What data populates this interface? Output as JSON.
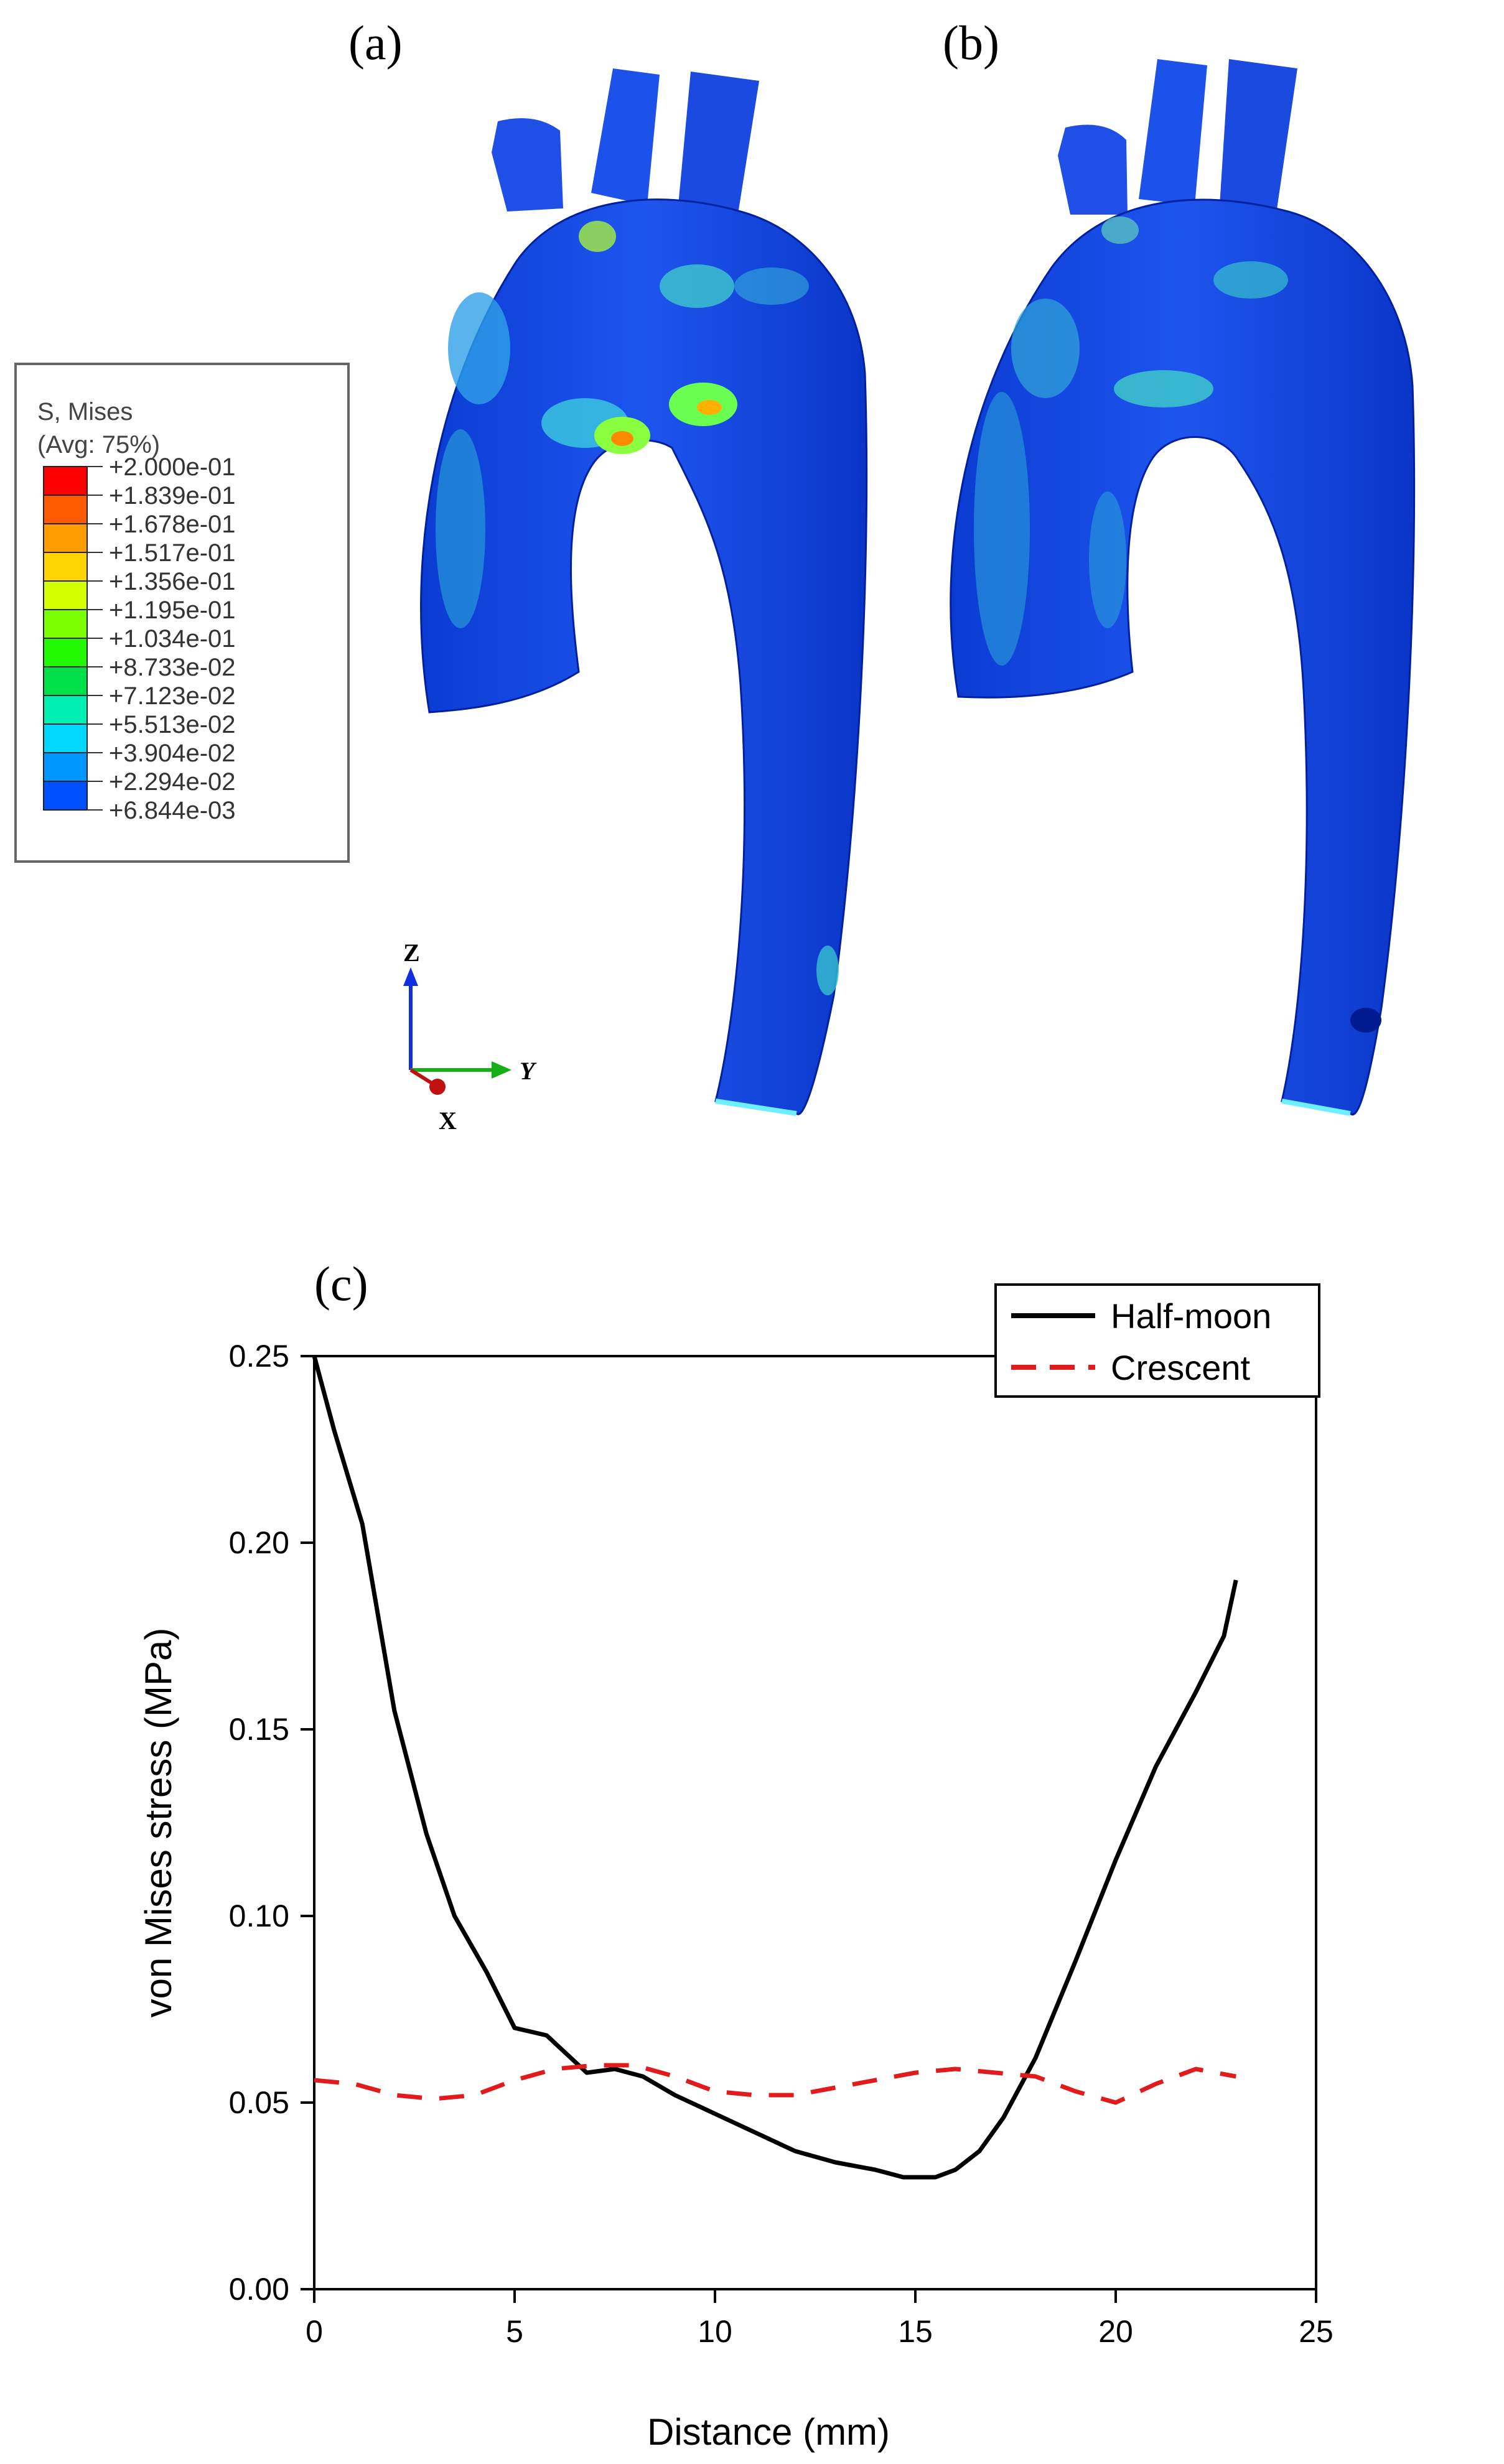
{
  "panels": {
    "a_label": "(a)",
    "b_label": "(b)",
    "c_label": "(c)"
  },
  "legend": {
    "title": "S, Mises",
    "subtitle": "(Avg: 75%)",
    "levels": [
      {
        "label": "+2.000e-01",
        "color": "#ff0000"
      },
      {
        "label": "+1.839e-01",
        "color": "#ff5a00"
      },
      {
        "label": "+1.678e-01",
        "color": "#ff9c00"
      },
      {
        "label": "+1.517e-01",
        "color": "#ffd400"
      },
      {
        "label": "+1.356e-01",
        "color": "#d4ff00"
      },
      {
        "label": "+1.195e-01",
        "color": "#7aff00"
      },
      {
        "label": "+1.034e-01",
        "color": "#22f800"
      },
      {
        "label": "+8.733e-02",
        "color": "#00e04a"
      },
      {
        "label": "+7.123e-02",
        "color": "#00f0b4"
      },
      {
        "label": "+5.513e-02",
        "color": "#00d8ff"
      },
      {
        "label": "+3.904e-02",
        "color": "#0096ff"
      },
      {
        "label": "+2.294e-02",
        "color": "#0050ff"
      },
      {
        "label": "+6.844e-03",
        "color": "#0010f0"
      }
    ]
  },
  "triad": {
    "z": "Z",
    "y": "Y",
    "x": "X"
  },
  "chart_data": {
    "type": "line",
    "title": "",
    "xlabel": "Distance (mm)",
    "ylabel": "von Mises stress (MPa)",
    "xlim": [
      0,
      25
    ],
    "ylim": [
      0,
      0.25
    ],
    "xticks": [
      "0",
      "5",
      "10",
      "15",
      "20",
      "25"
    ],
    "yticks": [
      "0.00",
      "0.05",
      "0.10",
      "0.15",
      "0.20",
      "0.25"
    ],
    "legend_position": "top-right",
    "series": [
      {
        "name": "Half-moon",
        "color": "#000000",
        "style": "solid",
        "x": [
          0,
          0.5,
          1.2,
          2,
          2.8,
          3.5,
          4.3,
          5,
          5.8,
          6.3,
          6.8,
          7.5,
          8.2,
          9,
          10,
          11,
          12,
          13,
          14,
          14.7,
          15.5,
          16,
          16.6,
          17.2,
          18,
          19,
          20,
          21,
          22,
          22.7,
          23
        ],
        "y": [
          0.25,
          0.23,
          0.205,
          0.155,
          0.122,
          0.1,
          0.085,
          0.07,
          0.068,
          0.063,
          0.058,
          0.059,
          0.057,
          0.052,
          0.047,
          0.042,
          0.037,
          0.034,
          0.032,
          0.03,
          0.03,
          0.032,
          0.037,
          0.046,
          0.062,
          0.088,
          0.115,
          0.14,
          0.16,
          0.175,
          0.19
        ]
      },
      {
        "name": "Crescent",
        "color": "#e31a1c",
        "style": "dashed",
        "x": [
          0,
          1,
          2,
          3,
          4,
          5,
          6,
          7,
          8,
          9,
          10,
          11,
          12,
          13,
          14,
          15,
          16,
          17,
          18,
          19,
          20,
          21,
          22,
          23
        ],
        "y": [
          0.056,
          0.055,
          0.052,
          0.051,
          0.052,
          0.056,
          0.059,
          0.06,
          0.06,
          0.057,
          0.053,
          0.052,
          0.052,
          0.054,
          0.056,
          0.058,
          0.059,
          0.058,
          0.057,
          0.053,
          0.05,
          0.055,
          0.059,
          0.057
        ]
      }
    ]
  }
}
